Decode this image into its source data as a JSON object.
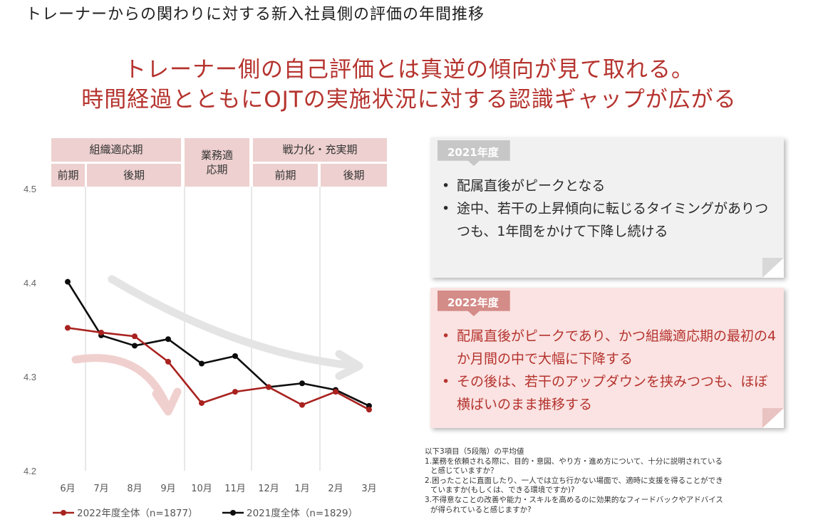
{
  "page_title": "トレーナーからの関わりに対する新入社員側の評価の年間推移",
  "headline": {
    "line1": "トレーナー側の自己評価とは真逆の傾向が見て取れる。",
    "line2": "時間経過とともにOJTの実施状況に対する認識ギャップが広がる"
  },
  "phases": {
    "org_adapt": "組織適応期",
    "org_early": "前期",
    "org_late": "後期",
    "work_adapt": "業務適応期",
    "power": "戦力化・充実期",
    "power_early": "前期",
    "power_late": "後期"
  },
  "chart_data": {
    "type": "line",
    "x": [
      "6月",
      "7月",
      "8月",
      "9月",
      "10月",
      "11月",
      "12月",
      "1月",
      "2月",
      "3月"
    ],
    "ylim": [
      4.2,
      4.5
    ],
    "yticks": [
      "4.2",
      "4.3",
      "4.4",
      "4.5"
    ],
    "grid": false,
    "legend_position": "bottom",
    "series": [
      {
        "name": "2022年度全体（n=1877）",
        "color": "#a8221f",
        "values": [
          4.352,
          4.347,
          4.343,
          4.316,
          4.272,
          4.284,
          4.289,
          4.27,
          4.284,
          4.265
        ]
      },
      {
        "name": "2021度全体（n=1829）",
        "color": "#0d0d0d",
        "values": [
          4.401,
          4.344,
          4.333,
          4.34,
          4.314,
          4.322,
          4.289,
          4.293,
          4.286,
          4.269
        ]
      }
    ]
  },
  "cards": {
    "y2021": {
      "tag": "2021年度",
      "bullets": [
        "配属直後がピークとなる",
        "途中、若干の上昇傾向に転じるタイミングがありつつも、1年間をかけて下降し続ける"
      ]
    },
    "y2022": {
      "tag": "2022年度",
      "bullets": [
        "配属直後がピークであり、かつ組織適応期の最初の4か月間の中で大幅に下降する",
        "その後は、若干のアップダウンを挟みつつも、ほぼ横ばいのまま推移する"
      ]
    }
  },
  "footnote": {
    "heading": "以下3項目（5段階）の平均値",
    "item1a": "1.業務を依頼される際に、目的・意図、やり方・進め方について、十分に説明されている",
    "item1b": "と感じていますか？",
    "item2a": "2.困ったことに直面したり、一人では立ち行かない場面で、適時に支援を得ることができ",
    "item2b": "ていますか(もしくは、できる環境ですか)?",
    "item3a": "3.不得意なことの改善や能力・スキルを高めるのに効果的なフィードバックやアドバイス",
    "item3b": "が得られていると感じますか?"
  },
  "colors": {
    "accent_red": "#b5332e",
    "phase_pink": "#edd0cf",
    "line_2022": "#a8221f",
    "line_2021": "#0d0d0d"
  },
  "icons": [
    "decline-arrow-2021-icon",
    "decline-arrow-2022-icon"
  ]
}
